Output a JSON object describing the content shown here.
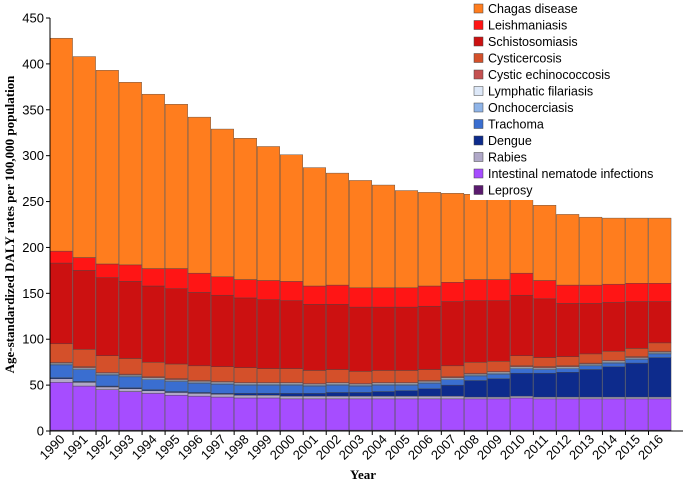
{
  "chart_data": {
    "type": "bar",
    "stacked": true,
    "title": "",
    "xlabel": "Year",
    "ylabel": "Age-standardized DALY rates per 100,000 population",
    "ylim": [
      0,
      450
    ],
    "yticks": [
      0,
      50,
      100,
      150,
      200,
      250,
      300,
      350,
      400,
      450
    ],
    "categories": [
      "1990",
      "1991",
      "1992",
      "1993",
      "1994",
      "1995",
      "1996",
      "1997",
      "1998",
      "1999",
      "2000",
      "2001",
      "2002",
      "2003",
      "2004",
      "2005",
      "2006",
      "2007",
      "2008",
      "2009",
      "2010",
      "2011",
      "2012",
      "2013",
      "2014",
      "2015",
      "2016"
    ],
    "legend_position": "top-right",
    "series": [
      {
        "name": "Leprosy",
        "color": "#5a1a6e",
        "values": [
          1,
          1,
          1,
          1,
          1,
          1,
          1,
          1,
          1,
          1,
          1,
          1,
          1,
          1,
          1,
          1,
          1,
          1,
          1,
          1,
          1,
          1,
          1,
          1,
          1,
          1,
          1
        ]
      },
      {
        "name": "Intestinal nematode infections",
        "color": "#a64dff",
        "values": [
          52,
          48,
          44,
          42,
          40,
          38,
          37,
          36,
          35,
          35,
          34,
          34,
          34,
          34,
          34,
          34,
          34,
          34,
          34,
          34,
          35,
          34,
          34,
          34,
          34,
          34,
          34
        ]
      },
      {
        "name": "Rabies",
        "color": "#b0a8c8",
        "values": [
          4,
          4,
          3,
          3,
          3,
          3,
          3,
          3,
          3,
          3,
          3,
          3,
          3,
          3,
          3,
          3,
          3,
          3,
          2,
          2,
          2,
          2,
          2,
          2,
          2,
          2,
          2
        ]
      },
      {
        "name": "Dengue",
        "color": "#0d2b8c",
        "values": [
          1,
          1,
          1,
          1,
          1,
          1,
          1,
          1,
          2,
          2,
          3,
          3,
          4,
          4,
          5,
          6,
          8,
          12,
          18,
          20,
          25,
          26,
          27,
          30,
          33,
          37,
          43
        ]
      },
      {
        "name": "Trachoma",
        "color": "#3a6ed0",
        "values": [
          14,
          13,
          12,
          12,
          11,
          11,
          10,
          10,
          9,
          9,
          9,
          8,
          8,
          7,
          7,
          6,
          6,
          6,
          5,
          5,
          5,
          4,
          4,
          4,
          4,
          4,
          4
        ]
      },
      {
        "name": "Onchocerciasis",
        "color": "#8fb4e8",
        "values": [
          1,
          1,
          1,
          1,
          1,
          1,
          1,
          1,
          1,
          1,
          1,
          1,
          1,
          1,
          1,
          1,
          1,
          1,
          1,
          1,
          1,
          1,
          1,
          1,
          1,
          1,
          1
        ]
      },
      {
        "name": "Lymphatic filariasis",
        "color": "#dde8f8",
        "values": [
          1,
          1,
          1,
          1,
          1,
          1,
          1,
          1,
          1,
          1,
          1,
          1,
          1,
          1,
          1,
          1,
          1,
          1,
          1,
          1,
          1,
          1,
          1,
          1,
          1,
          1,
          1
        ]
      },
      {
        "name": "Cystic echinococcosis",
        "color": "#c45050",
        "values": [
          1,
          1,
          1,
          1,
          1,
          1,
          1,
          1,
          1,
          1,
          1,
          1,
          1,
          1,
          1,
          1,
          1,
          1,
          1,
          1,
          1,
          1,
          1,
          1,
          1,
          1,
          1
        ]
      },
      {
        "name": "Cysticercosis",
        "color": "#d4502a",
        "values": [
          20,
          19,
          18,
          17,
          16,
          16,
          16,
          16,
          16,
          15,
          15,
          14,
          14,
          13,
          13,
          13,
          12,
          12,
          12,
          11,
          11,
          10,
          10,
          10,
          10,
          9,
          9
        ]
      },
      {
        "name": "Schistosomiasis",
        "color": "#cc1111",
        "values": [
          88,
          86,
          85,
          84,
          83,
          82,
          80,
          78,
          76,
          75,
          74,
          72,
          71,
          70,
          69,
          69,
          69,
          70,
          67,
          66,
          66,
          64,
          58,
          55,
          53,
          51,
          45
        ]
      },
      {
        "name": "Leishmaniasis",
        "color": "#ff1515",
        "values": [
          13,
          14,
          15,
          18,
          19,
          22,
          21,
          20,
          20,
          21,
          21,
          20,
          21,
          21,
          21,
          21,
          22,
          21,
          23,
          23,
          24,
          20,
          20,
          20,
          20,
          20,
          20
        ]
      },
      {
        "name": "Chagas disease",
        "color": "#ff7d1e",
        "values": [
          232,
          219,
          211,
          199,
          190,
          179,
          170,
          161,
          154,
          146,
          138,
          129,
          122,
          117,
          112,
          106,
          102,
          97,
          93,
          89,
          86,
          82,
          77,
          74,
          72,
          71,
          71
        ]
      }
    ]
  }
}
